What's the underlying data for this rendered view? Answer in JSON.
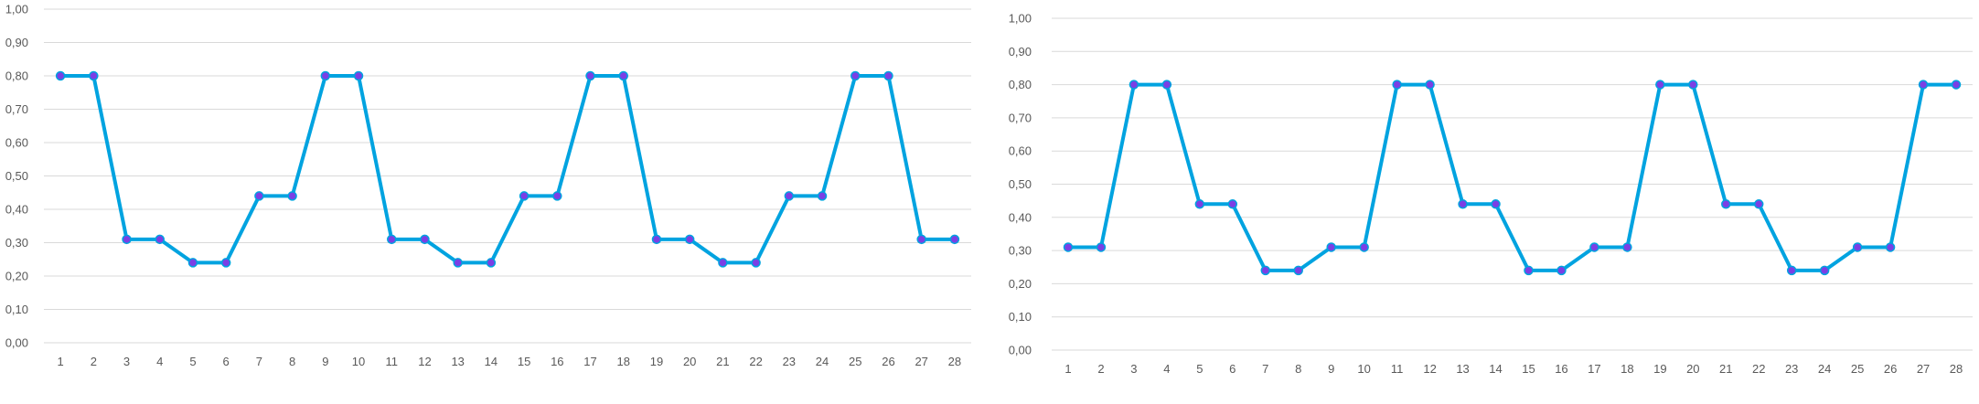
{
  "chart_data": [
    {
      "type": "line",
      "title": "",
      "xlabel": "",
      "ylabel": "",
      "categories": [
        "1",
        "2",
        "3",
        "4",
        "5",
        "6",
        "7",
        "8",
        "9",
        "10",
        "11",
        "12",
        "13",
        "14",
        "15",
        "16",
        "17",
        "18",
        "19",
        "20",
        "21",
        "22",
        "23",
        "24",
        "25",
        "26",
        "27",
        "28"
      ],
      "y_tick_labels": [
        "0,00",
        "0,10",
        "0,20",
        "0,30",
        "0,40",
        "0,50",
        "0,60",
        "0,70",
        "0,80",
        "0,90",
        "1,00"
      ],
      "ylim": [
        0,
        1
      ],
      "grid": true,
      "legend": "none",
      "series": [
        {
          "values": [
            0.8,
            0.8,
            0.31,
            0.31,
            0.24,
            0.24,
            0.44,
            0.44,
            0.8,
            0.8,
            0.31,
            0.31,
            0.24,
            0.24,
            0.44,
            0.44,
            0.8,
            0.8,
            0.31,
            0.31,
            0.24,
            0.24,
            0.44,
            0.44,
            0.8,
            0.8,
            0.31,
            0.31
          ],
          "line_color": "#00A3E0",
          "marker_color": "#7B3FE4"
        }
      ]
    },
    {
      "type": "line",
      "title": "",
      "xlabel": "",
      "ylabel": "",
      "categories": [
        "1",
        "2",
        "3",
        "4",
        "5",
        "6",
        "7",
        "8",
        "9",
        "10",
        "11",
        "12",
        "13",
        "14",
        "15",
        "16",
        "17",
        "18",
        "19",
        "20",
        "21",
        "22",
        "23",
        "24",
        "25",
        "26",
        "27",
        "28"
      ],
      "y_tick_labels": [
        "0,00",
        "0,10",
        "0,20",
        "0,30",
        "0,40",
        "0,50",
        "0,60",
        "0,70",
        "0,80",
        "0,90",
        "1,00"
      ],
      "ylim": [
        0,
        1
      ],
      "grid": true,
      "legend": "none",
      "series": [
        {
          "values": [
            0.31,
            0.31,
            0.8,
            0.8,
            0.44,
            0.44,
            0.24,
            0.24,
            0.31,
            0.31,
            0.8,
            0.8,
            0.44,
            0.44,
            0.24,
            0.24,
            0.31,
            0.31,
            0.8,
            0.8,
            0.44,
            0.44,
            0.24,
            0.24,
            0.31,
            0.31,
            0.8,
            0.8
          ],
          "line_color": "#00A3E0",
          "marker_color": "#7B3FE4"
        }
      ]
    }
  ],
  "colors": {
    "gridline": "#D9D9D9",
    "tick_text": "#595959",
    "background": "#FFFFFF"
  }
}
